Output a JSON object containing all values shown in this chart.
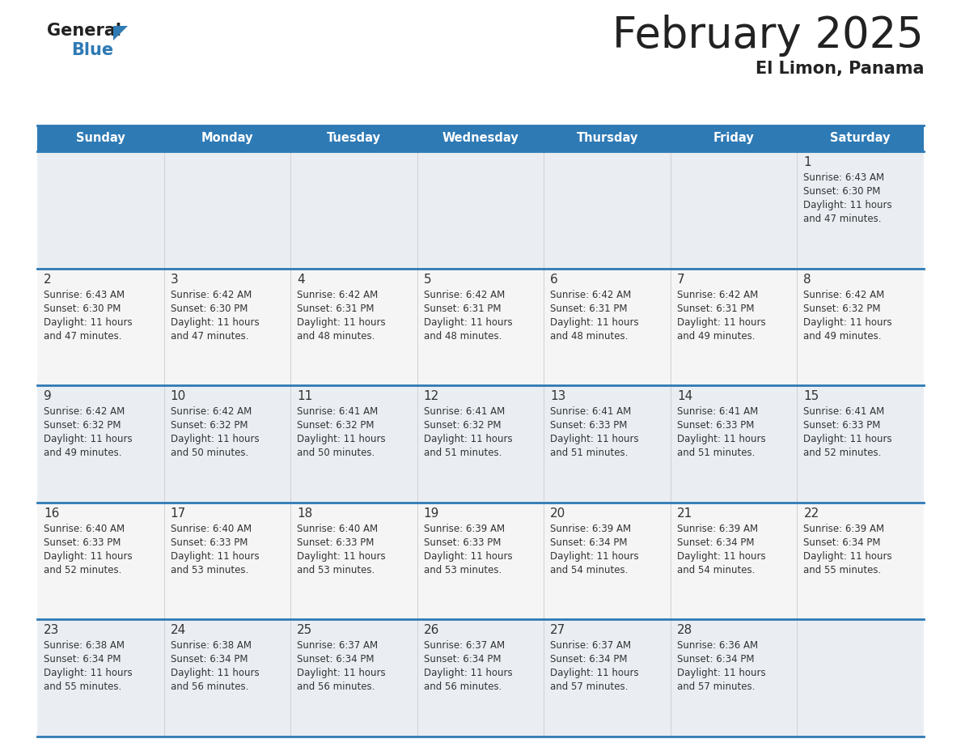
{
  "title": "February 2025",
  "subtitle": "El Limon, Panama",
  "header_color": "#2e7ab5",
  "header_text_color": "#ffffff",
  "days_of_week": [
    "Sunday",
    "Monday",
    "Tuesday",
    "Wednesday",
    "Thursday",
    "Friday",
    "Saturday"
  ],
  "bg_color": "#ffffff",
  "cell_bg_row0": "#e8eef4",
  "cell_bg_row1": "#f0f0f0",
  "cell_bg_row2": "#e8eef4",
  "cell_bg_row3": "#f0f0f0",
  "cell_bg_row4": "#e8eef4",
  "divider_color": "#2e7ab5",
  "text_color": "#333333",
  "calendar": [
    [
      null,
      null,
      null,
      null,
      null,
      null,
      {
        "day": 1,
        "sunrise": "6:43 AM",
        "sunset": "6:30 PM",
        "daylight_h": "11 hours",
        "daylight_m": "47 minutes"
      }
    ],
    [
      {
        "day": 2,
        "sunrise": "6:43 AM",
        "sunset": "6:30 PM",
        "daylight_h": "11 hours",
        "daylight_m": "47 minutes"
      },
      {
        "day": 3,
        "sunrise": "6:42 AM",
        "sunset": "6:30 PM",
        "daylight_h": "11 hours",
        "daylight_m": "47 minutes"
      },
      {
        "day": 4,
        "sunrise": "6:42 AM",
        "sunset": "6:31 PM",
        "daylight_h": "11 hours",
        "daylight_m": "48 minutes"
      },
      {
        "day": 5,
        "sunrise": "6:42 AM",
        "sunset": "6:31 PM",
        "daylight_h": "11 hours",
        "daylight_m": "48 minutes"
      },
      {
        "day": 6,
        "sunrise": "6:42 AM",
        "sunset": "6:31 PM",
        "daylight_h": "11 hours",
        "daylight_m": "48 minutes"
      },
      {
        "day": 7,
        "sunrise": "6:42 AM",
        "sunset": "6:31 PM",
        "daylight_h": "11 hours",
        "daylight_m": "49 minutes"
      },
      {
        "day": 8,
        "sunrise": "6:42 AM",
        "sunset": "6:32 PM",
        "daylight_h": "11 hours",
        "daylight_m": "49 minutes"
      }
    ],
    [
      {
        "day": 9,
        "sunrise": "6:42 AM",
        "sunset": "6:32 PM",
        "daylight_h": "11 hours",
        "daylight_m": "49 minutes"
      },
      {
        "day": 10,
        "sunrise": "6:42 AM",
        "sunset": "6:32 PM",
        "daylight_h": "11 hours",
        "daylight_m": "50 minutes"
      },
      {
        "day": 11,
        "sunrise": "6:41 AM",
        "sunset": "6:32 PM",
        "daylight_h": "11 hours",
        "daylight_m": "50 minutes"
      },
      {
        "day": 12,
        "sunrise": "6:41 AM",
        "sunset": "6:32 PM",
        "daylight_h": "11 hours",
        "daylight_m": "51 minutes"
      },
      {
        "day": 13,
        "sunrise": "6:41 AM",
        "sunset": "6:33 PM",
        "daylight_h": "11 hours",
        "daylight_m": "51 minutes"
      },
      {
        "day": 14,
        "sunrise": "6:41 AM",
        "sunset": "6:33 PM",
        "daylight_h": "11 hours",
        "daylight_m": "51 minutes"
      },
      {
        "day": 15,
        "sunrise": "6:41 AM",
        "sunset": "6:33 PM",
        "daylight_h": "11 hours",
        "daylight_m": "52 minutes"
      }
    ],
    [
      {
        "day": 16,
        "sunrise": "6:40 AM",
        "sunset": "6:33 PM",
        "daylight_h": "11 hours",
        "daylight_m": "52 minutes"
      },
      {
        "day": 17,
        "sunrise": "6:40 AM",
        "sunset": "6:33 PM",
        "daylight_h": "11 hours",
        "daylight_m": "53 minutes"
      },
      {
        "day": 18,
        "sunrise": "6:40 AM",
        "sunset": "6:33 PM",
        "daylight_h": "11 hours",
        "daylight_m": "53 minutes"
      },
      {
        "day": 19,
        "sunrise": "6:39 AM",
        "sunset": "6:33 PM",
        "daylight_h": "11 hours",
        "daylight_m": "53 minutes"
      },
      {
        "day": 20,
        "sunrise": "6:39 AM",
        "sunset": "6:34 PM",
        "daylight_h": "11 hours",
        "daylight_m": "54 minutes"
      },
      {
        "day": 21,
        "sunrise": "6:39 AM",
        "sunset": "6:34 PM",
        "daylight_h": "11 hours",
        "daylight_m": "54 minutes"
      },
      {
        "day": 22,
        "sunrise": "6:39 AM",
        "sunset": "6:34 PM",
        "daylight_h": "11 hours",
        "daylight_m": "55 minutes"
      }
    ],
    [
      {
        "day": 23,
        "sunrise": "6:38 AM",
        "sunset": "6:34 PM",
        "daylight_h": "11 hours",
        "daylight_m": "55 minutes"
      },
      {
        "day": 24,
        "sunrise": "6:38 AM",
        "sunset": "6:34 PM",
        "daylight_h": "11 hours",
        "daylight_m": "56 minutes"
      },
      {
        "day": 25,
        "sunrise": "6:37 AM",
        "sunset": "6:34 PM",
        "daylight_h": "11 hours",
        "daylight_m": "56 minutes"
      },
      {
        "day": 26,
        "sunrise": "6:37 AM",
        "sunset": "6:34 PM",
        "daylight_h": "11 hours",
        "daylight_m": "56 minutes"
      },
      {
        "day": 27,
        "sunrise": "6:37 AM",
        "sunset": "6:34 PM",
        "daylight_h": "11 hours",
        "daylight_m": "57 minutes"
      },
      {
        "day": 28,
        "sunrise": "6:36 AM",
        "sunset": "6:34 PM",
        "daylight_h": "11 hours",
        "daylight_m": "57 minutes"
      },
      null
    ]
  ]
}
